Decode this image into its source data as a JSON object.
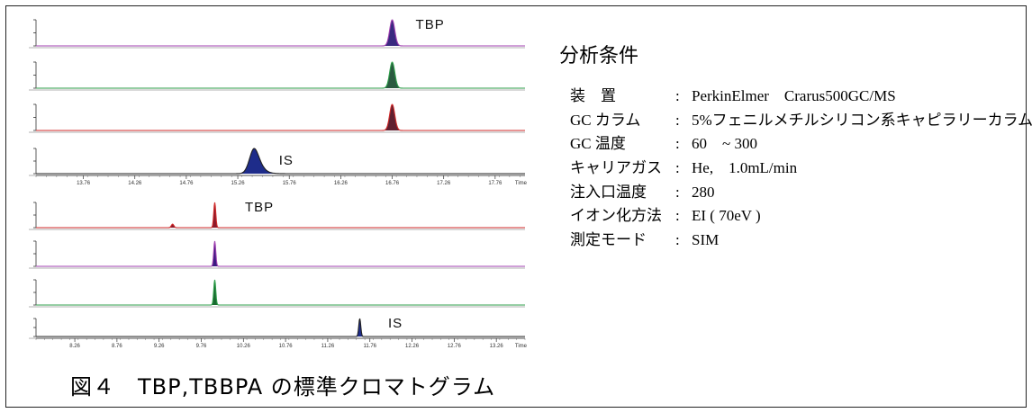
{
  "figure": {
    "caption": "図４　TBP,TBBPA の標準クロマトグラム",
    "conditions_title": "分析条件",
    "conditions": [
      {
        "key": "装　置",
        "sep": ":",
        "value": "PerkinElmer　Crarus500GC/MS"
      },
      {
        "key": "GC カラム",
        "sep": ":",
        "value": "5%フェニルメチルシリコン系キャピラリーカラム"
      },
      {
        "key": "GC 温度",
        "sep": ":",
        "value": "60　~ 300"
      },
      {
        "key": "キャリアガス",
        "sep": ":",
        "value": "He,　1.0mL/min"
      },
      {
        "key": "注入口温度",
        "sep": ":",
        "value": "280"
      },
      {
        "key": "イオン化方法",
        "sep": ":",
        "value": "EI ( 70eV )"
      },
      {
        "key": "測定モード",
        "sep": ":",
        "value": "SIM"
      }
    ]
  },
  "chart_data": [
    {
      "type": "line",
      "panel": "upper",
      "x_axis_label": "Time",
      "x_ticks": [
        13.76,
        14.26,
        14.76,
        15.26,
        15.76,
        16.26,
        16.76,
        17.26,
        17.76
      ],
      "xlim": [
        13.3,
        18.05
      ],
      "annotations": [
        {
          "text": "TBP",
          "trace": 0,
          "x": 16.76
        },
        {
          "text": "IS",
          "trace": 3,
          "x": 15.45
        }
      ],
      "traces": [
        {
          "color": "#a040b0",
          "fill": "#3a2a80",
          "peaks": [
            {
              "x": 16.76,
              "h": 1.0,
              "w": 0.025
            }
          ]
        },
        {
          "color": "#2e9e4a",
          "fill": "#2a5a40",
          "peaks": [
            {
              "x": 16.76,
              "h": 1.0,
              "w": 0.025
            }
          ]
        },
        {
          "color": "#d02a2a",
          "fill": "#602030",
          "peaks": [
            {
              "x": 16.76,
              "h": 1.0,
              "w": 0.025
            }
          ]
        },
        {
          "color": "#202020",
          "fill": "#1e2c8a",
          "peaks": [
            {
              "x": 15.42,
              "h": 1.0,
              "w": 0.045,
              "tail": 0.18
            }
          ]
        }
      ]
    },
    {
      "type": "line",
      "panel": "lower",
      "x_axis_label": "Time",
      "x_ticks": [
        8.26,
        8.76,
        9.26,
        9.76,
        10.26,
        10.76,
        11.26,
        11.76,
        12.26,
        12.76,
        13.26
      ],
      "xlim": [
        7.8,
        13.6
      ],
      "annotations": [
        {
          "text": "TBP",
          "trace": 0,
          "x": 10.0
        },
        {
          "text": "IS",
          "trace": 3,
          "x": 11.72
        }
      ],
      "traces": [
        {
          "color": "#d02a2a",
          "fill": "#8a1a2a",
          "peaks": [
            {
              "x": 9.42,
              "h": 0.14,
              "w": 0.015
            },
            {
              "x": 9.92,
              "h": 1.0,
              "w": 0.012
            }
          ]
        },
        {
          "color": "#a040b0",
          "fill": "#3a1a80",
          "peaks": [
            {
              "x": 9.92,
              "h": 1.0,
              "w": 0.012
            }
          ]
        },
        {
          "color": "#2e9e4a",
          "fill": "#1a6a30",
          "peaks": [
            {
              "x": 9.92,
              "h": 1.0,
              "w": 0.012
            }
          ]
        },
        {
          "color": "#202020",
          "fill": "#1e2c8a",
          "peaks": [
            {
              "x": 11.64,
              "h": 1.0,
              "w": 0.012
            }
          ]
        }
      ]
    }
  ]
}
